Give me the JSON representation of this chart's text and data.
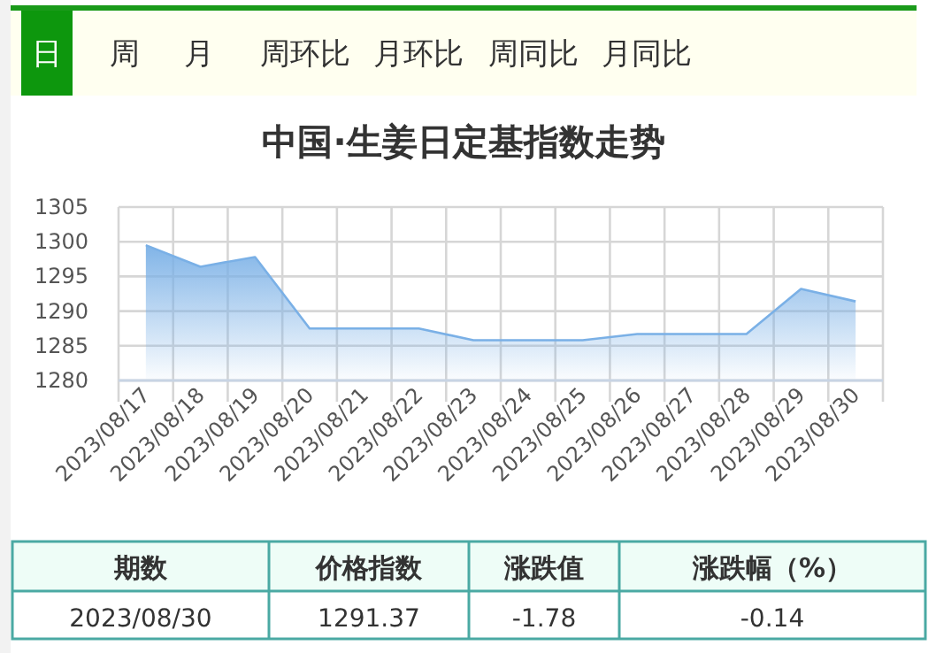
{
  "chart_data": {
    "type": "area",
    "title": "中国·生姜日定基指数走势",
    "categories": [
      "2023/08/17",
      "2023/08/18",
      "2023/08/19",
      "2023/08/20",
      "2023/08/21",
      "2023/08/22",
      "2023/08/23",
      "2023/08/24",
      "2023/08/25",
      "2023/08/26",
      "2023/08/27",
      "2023/08/28",
      "2023/08/29",
      "2023/08/30"
    ],
    "values": [
      1299.5,
      1296.4,
      1297.8,
      1287.5,
      1287.5,
      1287.5,
      1285.8,
      1285.8,
      1285.8,
      1286.7,
      1286.7,
      1286.7,
      1293.2,
      1291.4
    ],
    "color": "#7ab0e6",
    "ylim": [
      1280,
      1305
    ],
    "yticks": [
      1280,
      1285,
      1290,
      1295,
      1300,
      1305
    ],
    "grid": true,
    "annotations": [
      "日",
      "周",
      "月",
      "周环比",
      "月环比",
      "周同比",
      "月同比",
      "期数",
      "价格指数",
      "涨跌值",
      "涨跌幅（%）",
      "2023/08/30",
      "1291.37",
      "-1.78",
      "-0.14"
    ]
  }
}
